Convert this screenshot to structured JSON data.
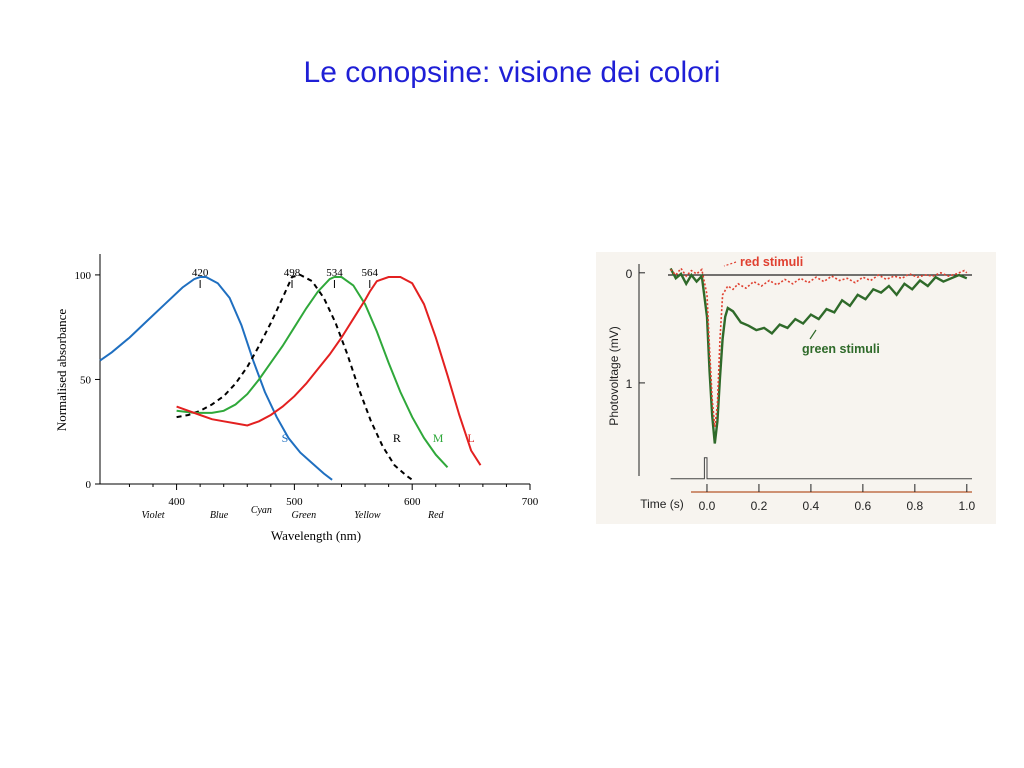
{
  "slide": {
    "title": "Le conopsine: visione dei colori"
  },
  "colors": {
    "title": "#1f1fd6",
    "S": "#1f6fc0",
    "R": "#000000",
    "M": "#2fa83a",
    "L": "#e32020",
    "red_stimuli": "#e04030",
    "green_stimuli": "#2f6a2a"
  },
  "chart_data": [
    {
      "type": "line",
      "title": "",
      "xlabel": "Wavelength (nm)",
      "ylabel": "Normalised absorbance",
      "xlim": [
        335,
        700
      ],
      "ylim": [
        0,
        110
      ],
      "x_ticks": [
        "400",
        "500",
        "600",
        "700"
      ],
      "x_tick_values": [
        400,
        500,
        600,
        700
      ],
      "y_ticks": [
        "0",
        "50",
        "100"
      ],
      "y_tick_values": [
        0,
        50,
        100
      ],
      "color_names": [
        {
          "label": "Violet",
          "x": 380
        },
        {
          "label": "Blue",
          "x": 436
        },
        {
          "label": "Cyan",
          "x": 472
        },
        {
          "label": "Green",
          "x": 508
        },
        {
          "label": "Yellow",
          "x": 562
        },
        {
          "label": "Red",
          "x": 620
        }
      ],
      "peaks": [
        {
          "label": "420",
          "x": 420
        },
        {
          "label": "498",
          "x": 498
        },
        {
          "label": "534",
          "x": 534
        },
        {
          "label": "564",
          "x": 564
        }
      ],
      "series": [
        {
          "name": "S",
          "style": "solid",
          "label_x": 492,
          "label_y": 20,
          "x": [
            335,
            345,
            360,
            375,
            390,
            405,
            415,
            420,
            425,
            435,
            445,
            455,
            465,
            475,
            485,
            495,
            505,
            515,
            525,
            532
          ],
          "y": [
            59,
            63,
            70,
            78,
            86,
            94,
            98,
            99,
            99,
            96,
            89,
            76,
            59,
            44,
            32,
            22,
            15,
            10,
            5,
            2
          ]
        },
        {
          "name": "R",
          "style": "dashed",
          "label_x": 587,
          "label_y": 20,
          "x": [
            400,
            410,
            420,
            430,
            440,
            450,
            460,
            470,
            480,
            490,
            498,
            505,
            515,
            525,
            535,
            545,
            555,
            565,
            575,
            585,
            595,
            600
          ],
          "y": [
            32,
            33,
            35,
            38,
            42,
            48,
            56,
            66,
            77,
            89,
            99,
            100,
            97,
            89,
            77,
            62,
            45,
            30,
            18,
            9,
            4,
            2
          ],
          "style_color": "#000000"
        },
        {
          "name": "M",
          "style": "solid",
          "label_x": 622,
          "label_y": 20,
          "x": [
            400,
            415,
            430,
            440,
            450,
            460,
            470,
            480,
            490,
            500,
            510,
            520,
            530,
            534,
            540,
            550,
            560,
            570,
            580,
            590,
            600,
            610,
            620,
            630
          ],
          "y": [
            35,
            34,
            34,
            35,
            38,
            43,
            50,
            58,
            66,
            75,
            84,
            92,
            98,
            99,
            99,
            95,
            86,
            73,
            58,
            44,
            32,
            22,
            14,
            8
          ],
          "style_color": "#2fa83a"
        },
        {
          "name": "L",
          "style": "solid",
          "label_x": 650,
          "label_y": 20,
          "x": [
            400,
            410,
            420,
            430,
            440,
            450,
            460,
            470,
            480,
            490,
            500,
            510,
            520,
            530,
            540,
            550,
            560,
            564,
            570,
            580,
            590,
            600,
            610,
            620,
            630,
            640,
            650,
            658
          ],
          "y": [
            37,
            35,
            33,
            31,
            30,
            29,
            28,
            30,
            33,
            37,
            42,
            48,
            55,
            62,
            70,
            79,
            88,
            92,
            97,
            99,
            99,
            96,
            86,
            70,
            52,
            33,
            16,
            9
          ],
          "style_color": "#e32020"
        }
      ]
    },
    {
      "type": "line",
      "title": "",
      "xlabel": "Time (s)",
      "ylabel": "Photovoltage (mV)",
      "xlim": [
        -0.15,
        1.02
      ],
      "ylim": [
        1.9,
        -0.08
      ],
      "x_ticks": [
        "0.0",
        "0.2",
        "0.4",
        "0.6",
        "0.8",
        "1.0"
      ],
      "x_tick_values": [
        0.0,
        0.2,
        0.4,
        0.6,
        0.8,
        1.0
      ],
      "y_ticks": [
        "0",
        "1"
      ],
      "y_tick_values": [
        0,
        1
      ],
      "series": [
        {
          "name": "red stimuli",
          "style": "dotted",
          "x": [
            -0.14,
            -0.12,
            -0.1,
            -0.08,
            -0.06,
            -0.04,
            -0.02,
            0.0,
            0.01,
            0.02,
            0.03,
            0.04,
            0.05,
            0.06,
            0.08,
            0.1,
            0.12,
            0.15,
            0.18,
            0.21,
            0.24,
            0.27,
            0.3,
            0.33,
            0.36,
            0.39,
            0.42,
            0.45,
            0.48,
            0.51,
            0.54,
            0.57,
            0.6,
            0.63,
            0.66,
            0.69,
            0.72,
            0.75,
            0.78,
            0.81,
            0.84,
            0.87,
            0.9,
            0.93,
            0.96,
            0.99,
            1.0
          ],
          "y": [
            -0.03,
            0.02,
            -0.04,
            0.03,
            -0.02,
            0.01,
            -0.03,
            0.2,
            0.7,
            1.15,
            1.4,
            1.2,
            0.6,
            0.2,
            0.12,
            0.15,
            0.1,
            0.14,
            0.08,
            0.12,
            0.07,
            0.11,
            0.06,
            0.1,
            0.05,
            0.09,
            0.04,
            0.08,
            0.03,
            0.07,
            0.05,
            0.09,
            0.04,
            0.07,
            0.02,
            0.06,
            0.03,
            0.05,
            0.01,
            0.04,
            0.02,
            0.03,
            0.0,
            0.03,
            0.01,
            -0.02,
            0.0
          ]
        },
        {
          "name": "green stimuli",
          "style": "solid",
          "x": [
            -0.14,
            -0.12,
            -0.1,
            -0.08,
            -0.06,
            -0.04,
            -0.02,
            0.0,
            0.01,
            0.02,
            0.03,
            0.04,
            0.05,
            0.06,
            0.07,
            0.08,
            0.1,
            0.13,
            0.16,
            0.19,
            0.22,
            0.25,
            0.28,
            0.31,
            0.34,
            0.37,
            0.4,
            0.43,
            0.46,
            0.49,
            0.52,
            0.55,
            0.58,
            0.61,
            0.64,
            0.67,
            0.7,
            0.73,
            0.76,
            0.79,
            0.82,
            0.85,
            0.88,
            0.91,
            0.94,
            0.97,
            1.0
          ],
          "y": [
            -0.04,
            0.05,
            0.01,
            0.1,
            0.02,
            0.08,
            0.03,
            0.4,
            0.9,
            1.3,
            1.55,
            1.35,
            0.95,
            0.6,
            0.4,
            0.32,
            0.35,
            0.45,
            0.48,
            0.52,
            0.5,
            0.55,
            0.47,
            0.5,
            0.42,
            0.46,
            0.38,
            0.42,
            0.33,
            0.36,
            0.25,
            0.3,
            0.2,
            0.24,
            0.15,
            0.18,
            0.12,
            0.2,
            0.1,
            0.15,
            0.07,
            0.12,
            0.04,
            0.08,
            0.05,
            0.02,
            0.05
          ]
        },
        {
          "name": "stimulus",
          "style": "solid",
          "x": [
            -0.14,
            -0.01,
            -0.01,
            0.0,
            0.0,
            1.02
          ],
          "y": [
            1.87,
            1.87,
            1.68,
            1.68,
            1.87,
            1.87
          ]
        }
      ],
      "annotations": [
        "red stimuli",
        "green stimuli"
      ]
    }
  ]
}
